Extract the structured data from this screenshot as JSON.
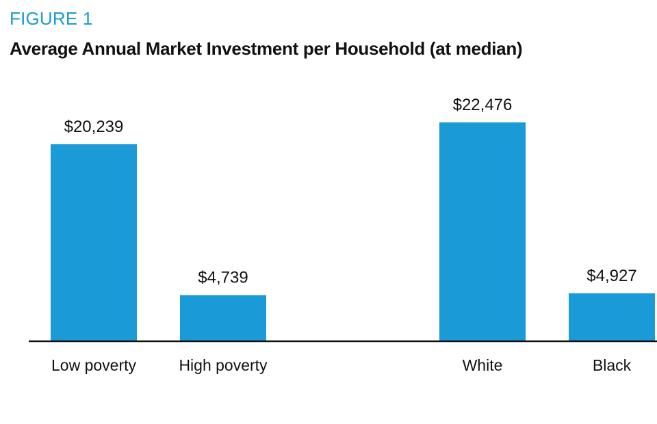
{
  "figure_label": "FIGURE 1",
  "chart_data": {
    "type": "bar",
    "title": "Average Annual Market Investment per Household (at median)",
    "categories": [
      "Low poverty",
      "High poverty",
      "White",
      "Black"
    ],
    "values": [
      20239,
      4739,
      22476,
      4927
    ],
    "value_labels": [
      "$20,239",
      "$4,739",
      "$22,476",
      "$4,927"
    ],
    "groups": [
      [
        "Low poverty",
        "High poverty"
      ],
      [
        "White",
        "Black"
      ]
    ],
    "ylim": [
      0,
      22476
    ],
    "xlabel": "",
    "ylabel": "",
    "grid": false,
    "legend": "none",
    "bar_color": "#1a9ad6",
    "axis_color": "#111111"
  }
}
